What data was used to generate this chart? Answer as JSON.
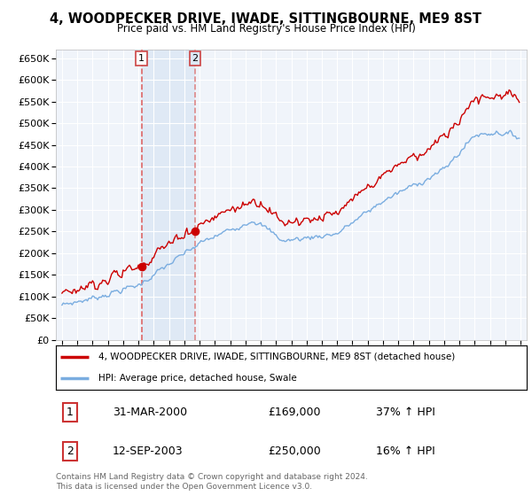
{
  "title": "4, WOODPECKER DRIVE, IWADE, SITTINGBOURNE, ME9 8ST",
  "subtitle": "Price paid vs. HM Land Registry's House Price Index (HPI)",
  "legend_line1": "4, WOODPECKER DRIVE, IWADE, SITTINGBOURNE, ME9 8ST (detached house)",
  "legend_line2": "HPI: Average price, detached house, Swale",
  "purchase1_label": "1",
  "purchase1_date": "31-MAR-2000",
  "purchase1_price": "£169,000",
  "purchase1_hpi": "37% ↑ HPI",
  "purchase1_year": 2000.21,
  "purchase1_value": 169000,
  "purchase2_label": "2",
  "purchase2_date": "12-SEP-2003",
  "purchase2_price": "£250,000",
  "purchase2_hpi": "16% ↑ HPI",
  "purchase2_year": 2003.71,
  "purchase2_value": 250000,
  "footer": "Contains HM Land Registry data © Crown copyright and database right 2024.\nThis data is licensed under the Open Government Licence v3.0.",
  "ylim": [
    0,
    670000
  ],
  "ytick_values": [
    0,
    50000,
    100000,
    150000,
    200000,
    250000,
    300000,
    350000,
    400000,
    450000,
    500000,
    550000,
    600000,
    650000
  ],
  "ytick_labels": [
    "£0",
    "£50K",
    "£100K",
    "£150K",
    "£200K",
    "£250K",
    "£300K",
    "£350K",
    "£400K",
    "£450K",
    "£500K",
    "£550K",
    "£600K",
    "£650K"
  ],
  "xlim_left": 1994.6,
  "xlim_right": 2025.4,
  "property_color": "#cc0000",
  "hpi_color": "#7aade0",
  "vline1_color": "#dd6666",
  "vline2_color": "#dd8888",
  "shade_color": "#dce8f5",
  "grid_color": "#e0e0e0",
  "bg_color": "#f0f4fa",
  "box1_facecolor": "#ffffff",
  "box2_facecolor": "#dce8f5",
  "box_edgecolor": "#cc4444"
}
